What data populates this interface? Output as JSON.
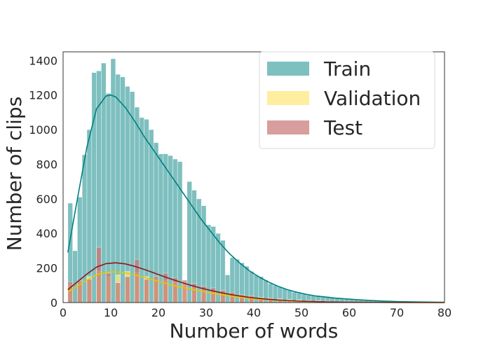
{
  "chart_data": {
    "type": "histogram",
    "title": "",
    "xlabel": "Number of words",
    "ylabel": "Number of clips",
    "xlim": [
      0,
      80
    ],
    "ylim": [
      0,
      1450
    ],
    "xticks": [
      "0",
      "10",
      "20",
      "30",
      "40",
      "50",
      "60",
      "70",
      "80"
    ],
    "yticks": [
      "0",
      "200",
      "400",
      "600",
      "800",
      "1000",
      "1200",
      "1400"
    ],
    "grid": false,
    "legend_position": "top-right",
    "series": [
      {
        "name": "Train",
        "color": "#5aadad",
        "kde_color": "#008080",
        "bins": [
          [
            1,
            2,
            575
          ],
          [
            2,
            3,
            300
          ],
          [
            3,
            4,
            610
          ],
          [
            4,
            5,
            855
          ],
          [
            5,
            6,
            1000
          ],
          [
            6,
            7,
            1330
          ],
          [
            7,
            8,
            1340
          ],
          [
            8,
            9,
            1385
          ],
          [
            9,
            10,
            1210
          ],
          [
            10,
            11,
            1410
          ],
          [
            11,
            12,
            1320
          ],
          [
            12,
            13,
            1305
          ],
          [
            13,
            14,
            1250
          ],
          [
            14,
            15,
            1220
          ],
          [
            15,
            16,
            1130
          ],
          [
            16,
            17,
            1070
          ],
          [
            17,
            18,
            1060
          ],
          [
            18,
            19,
            1000
          ],
          [
            19,
            20,
            925
          ],
          [
            20,
            21,
            860
          ],
          [
            21,
            22,
            860
          ],
          [
            22,
            23,
            850
          ],
          [
            23,
            24,
            830
          ],
          [
            24,
            25,
            815
          ],
          [
            25,
            26,
            0
          ],
          [
            26,
            27,
            700
          ],
          [
            27,
            28,
            650
          ],
          [
            28,
            29,
            600
          ],
          [
            29,
            30,
            560
          ],
          [
            30,
            31,
            450
          ],
          [
            31,
            32,
            440
          ],
          [
            32,
            33,
            400
          ],
          [
            33,
            34,
            360
          ],
          [
            34,
            35,
            160
          ],
          [
            35,
            36,
            260
          ],
          [
            36,
            37,
            250
          ],
          [
            37,
            38,
            230
          ],
          [
            38,
            39,
            210
          ],
          [
            39,
            40,
            180
          ],
          [
            40,
            41,
            160
          ],
          [
            41,
            42,
            150
          ],
          [
            42,
            43,
            130
          ],
          [
            43,
            44,
            110
          ],
          [
            44,
            45,
            100
          ],
          [
            45,
            46,
            90
          ],
          [
            46,
            47,
            80
          ],
          [
            47,
            48,
            70
          ],
          [
            48,
            49,
            60
          ],
          [
            49,
            50,
            55
          ],
          [
            50,
            51,
            50
          ],
          [
            51,
            52,
            45
          ],
          [
            52,
            53,
            42
          ],
          [
            53,
            54,
            40
          ],
          [
            54,
            55,
            38
          ],
          [
            55,
            56,
            35
          ],
          [
            56,
            57,
            30
          ],
          [
            57,
            58,
            28
          ],
          [
            58,
            59,
            24
          ],
          [
            59,
            60,
            20
          ],
          [
            60,
            61,
            18
          ],
          [
            61,
            62,
            16
          ],
          [
            62,
            63,
            14
          ],
          [
            63,
            64,
            12
          ],
          [
            64,
            65,
            10
          ],
          [
            65,
            66,
            9
          ],
          [
            66,
            67,
            8
          ],
          [
            67,
            68,
            7
          ],
          [
            68,
            69,
            6
          ],
          [
            69,
            70,
            5
          ],
          [
            70,
            71,
            4
          ]
        ],
        "kde": [
          [
            1,
            290
          ],
          [
            3,
            600
          ],
          [
            5,
            900
          ],
          [
            7,
            1120
          ],
          [
            9,
            1195
          ],
          [
            10,
            1200
          ],
          [
            11,
            1190
          ],
          [
            13,
            1130
          ],
          [
            15,
            1050
          ],
          [
            17,
            960
          ],
          [
            19,
            880
          ],
          [
            21,
            800
          ],
          [
            23,
            720
          ],
          [
            25,
            640
          ],
          [
            27,
            560
          ],
          [
            29,
            480
          ],
          [
            31,
            410
          ],
          [
            33,
            340
          ],
          [
            35,
            280
          ],
          [
            37,
            230
          ],
          [
            39,
            185
          ],
          [
            41,
            150
          ],
          [
            43,
            120
          ],
          [
            45,
            95
          ],
          [
            47,
            75
          ],
          [
            49,
            60
          ],
          [
            51,
            48
          ],
          [
            53,
            38
          ],
          [
            55,
            32
          ],
          [
            57,
            26
          ],
          [
            59,
            22
          ],
          [
            61,
            18
          ],
          [
            64,
            13
          ],
          [
            67,
            9
          ],
          [
            70,
            6
          ],
          [
            74,
            4
          ],
          [
            80,
            2
          ]
        ]
      },
      {
        "name": "Validation",
        "color": "#ffe87a",
        "kde_color": "#e6c800",
        "bins": [
          [
            1,
            2,
            110
          ],
          [
            3,
            4,
            120
          ],
          [
            5,
            6,
            150
          ],
          [
            7,
            8,
            185
          ],
          [
            9,
            10,
            150
          ],
          [
            11,
            12,
            160
          ],
          [
            13,
            14,
            180
          ],
          [
            15,
            16,
            175
          ],
          [
            17,
            18,
            150
          ],
          [
            19,
            20,
            140
          ],
          [
            21,
            22,
            130
          ],
          [
            23,
            24,
            120
          ],
          [
            25,
            26,
            100
          ],
          [
            27,
            28,
            95
          ],
          [
            29,
            30,
            80
          ],
          [
            31,
            32,
            70
          ],
          [
            33,
            34,
            60
          ],
          [
            35,
            36,
            50
          ],
          [
            37,
            38,
            40
          ],
          [
            39,
            40,
            35
          ],
          [
            41,
            42,
            30
          ],
          [
            43,
            44,
            25
          ],
          [
            45,
            46,
            22
          ],
          [
            47,
            48,
            18
          ],
          [
            49,
            50,
            15
          ],
          [
            51,
            52,
            12
          ],
          [
            53,
            54,
            10
          ],
          [
            55,
            56,
            8
          ]
        ],
        "kde": [
          [
            1,
            60
          ],
          [
            3,
            95
          ],
          [
            5,
            130
          ],
          [
            7,
            160
          ],
          [
            9,
            175
          ],
          [
            11,
            178
          ],
          [
            13,
            172
          ],
          [
            15,
            160
          ],
          [
            17,
            145
          ],
          [
            19,
            130
          ],
          [
            21,
            115
          ],
          [
            23,
            100
          ],
          [
            25,
            88
          ],
          [
            27,
            76
          ],
          [
            29,
            65
          ],
          [
            31,
            55
          ],
          [
            33,
            46
          ],
          [
            35,
            38
          ],
          [
            37,
            31
          ],
          [
            39,
            25
          ],
          [
            41,
            20
          ],
          [
            43,
            16
          ],
          [
            45,
            13
          ],
          [
            47,
            10
          ],
          [
            50,
            7
          ],
          [
            55,
            4
          ],
          [
            60,
            2
          ],
          [
            70,
            1
          ],
          [
            80,
            0
          ]
        ]
      },
      {
        "name": "Test",
        "color": "#c87474",
        "kde_color": "#8b1a1a",
        "bins": [
          [
            1,
            2,
            120
          ],
          [
            3,
            4,
            125
          ],
          [
            5,
            6,
            135
          ],
          [
            7,
            8,
            320
          ],
          [
            9,
            10,
            170
          ],
          [
            11,
            12,
            115
          ],
          [
            13,
            14,
            150
          ],
          [
            15,
            16,
            250
          ],
          [
            17,
            18,
            135
          ],
          [
            19,
            20,
            150
          ],
          [
            21,
            22,
            170
          ],
          [
            23,
            24,
            145
          ],
          [
            25,
            26,
            130
          ],
          [
            27,
            28,
            110
          ],
          [
            29,
            30,
            95
          ],
          [
            31,
            32,
            85
          ],
          [
            33,
            34,
            70
          ],
          [
            35,
            36,
            60
          ],
          [
            37,
            38,
            45
          ],
          [
            39,
            40,
            40
          ],
          [
            41,
            42,
            30
          ],
          [
            43,
            44,
            25
          ],
          [
            45,
            46,
            20
          ],
          [
            47,
            48,
            15
          ],
          [
            49,
            50,
            12
          ],
          [
            51,
            52,
            10
          ],
          [
            53,
            54,
            8
          ]
        ],
        "kde": [
          [
            1,
            75
          ],
          [
            3,
            120
          ],
          [
            5,
            165
          ],
          [
            7,
            205
          ],
          [
            9,
            225
          ],
          [
            11,
            230
          ],
          [
            13,
            224
          ],
          [
            15,
            210
          ],
          [
            17,
            192
          ],
          [
            19,
            172
          ],
          [
            21,
            152
          ],
          [
            23,
            133
          ],
          [
            25,
            115
          ],
          [
            27,
            98
          ],
          [
            29,
            83
          ],
          [
            31,
            70
          ],
          [
            33,
            58
          ],
          [
            35,
            47
          ],
          [
            37,
            38
          ],
          [
            39,
            30
          ],
          [
            41,
            24
          ],
          [
            43,
            19
          ],
          [
            45,
            15
          ],
          [
            47,
            12
          ],
          [
            50,
            8
          ],
          [
            55,
            4
          ],
          [
            60,
            2
          ],
          [
            70,
            1
          ],
          [
            80,
            0
          ]
        ]
      }
    ]
  }
}
